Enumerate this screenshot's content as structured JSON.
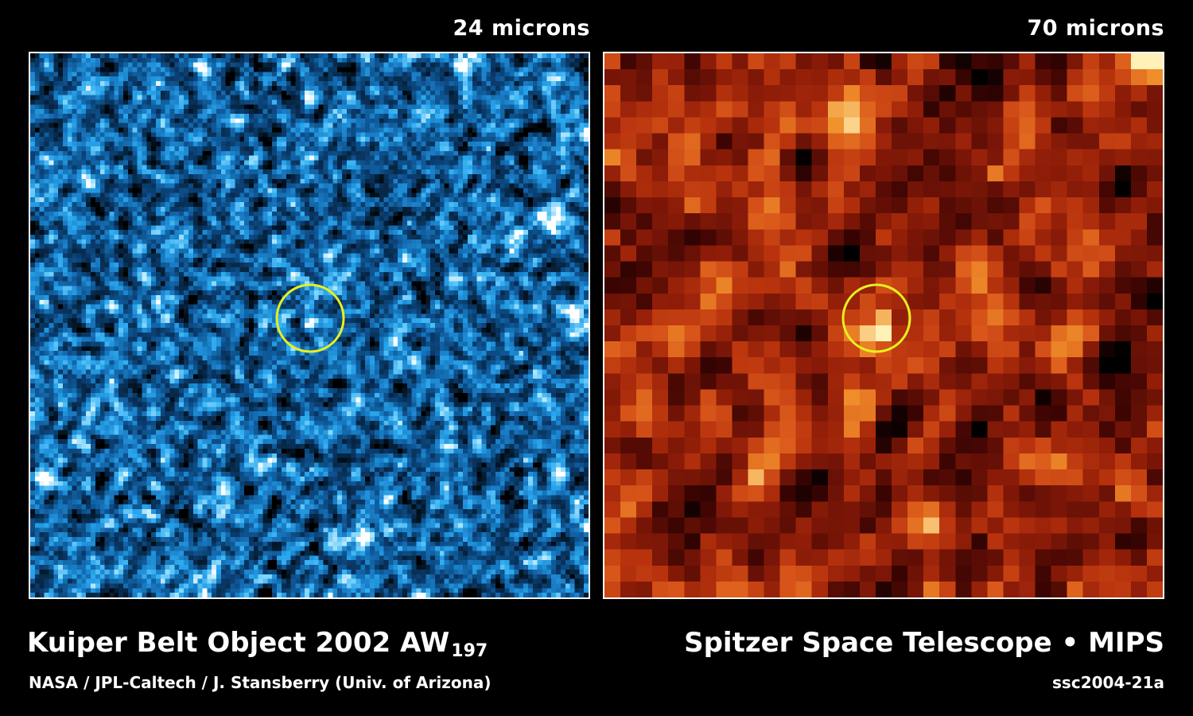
{
  "panels": {
    "left": {
      "label": "24 microns",
      "colormap": [
        "#000000",
        "#06243f",
        "#0a3a6a",
        "#0f5a99",
        "#1a7fc8",
        "#2aa8ee",
        "#7fd4fb",
        "#ffffff"
      ],
      "marker_color": "#e7f01e"
    },
    "right": {
      "label": "70 microns",
      "colormap": [
        "#000000",
        "#3a0402",
        "#6a1106",
        "#8f1d08",
        "#b8330d",
        "#d9561a",
        "#f0912b",
        "#fff1b8"
      ],
      "marker_color": "#e7f01e"
    }
  },
  "caption": {
    "left": {
      "title": "Kuiper Belt Object 2002 AW",
      "title_subscript": "197",
      "credit": "NASA / JPL-Caltech / J. Stansberry (Univ. of Arizona)"
    },
    "right": {
      "title": "Spitzer Space Telescope • MIPS",
      "credit": "ssc2004-21a"
    }
  }
}
